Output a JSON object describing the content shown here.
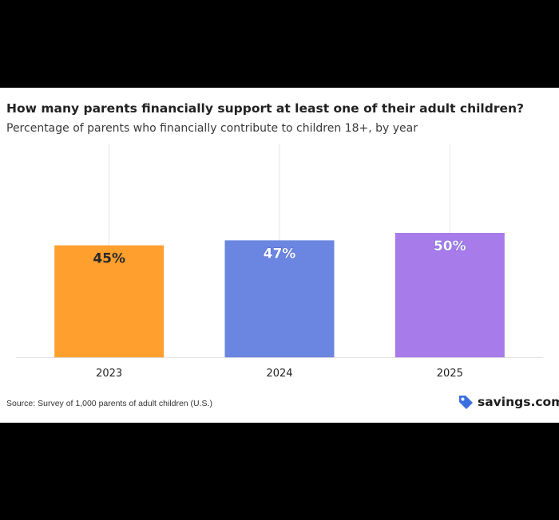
{
  "chart_data": {
    "type": "bar",
    "title": "How many parents financially support at least one of their adult children?",
    "subtitle": "Percentage of parents who financially contribute to children 18+, by year",
    "categories": [
      "2023",
      "2024",
      "2025"
    ],
    "values": [
      45,
      47,
      50
    ],
    "data_labels": [
      "45%",
      "47%",
      "50%"
    ],
    "colors": [
      "#FF9F2E",
      "#6A86E0",
      "#A77BE9"
    ],
    "ylim": [
      0,
      100
    ],
    "grid": "vertical lines at category centers",
    "legend": "none"
  },
  "footer": {
    "source": "Source: Survey of 1,000 parents of adult children (U.S.)",
    "brand": "savings.com",
    "brand_icon": "tag-icon",
    "brand_icon_color": "#3B6FE0"
  }
}
